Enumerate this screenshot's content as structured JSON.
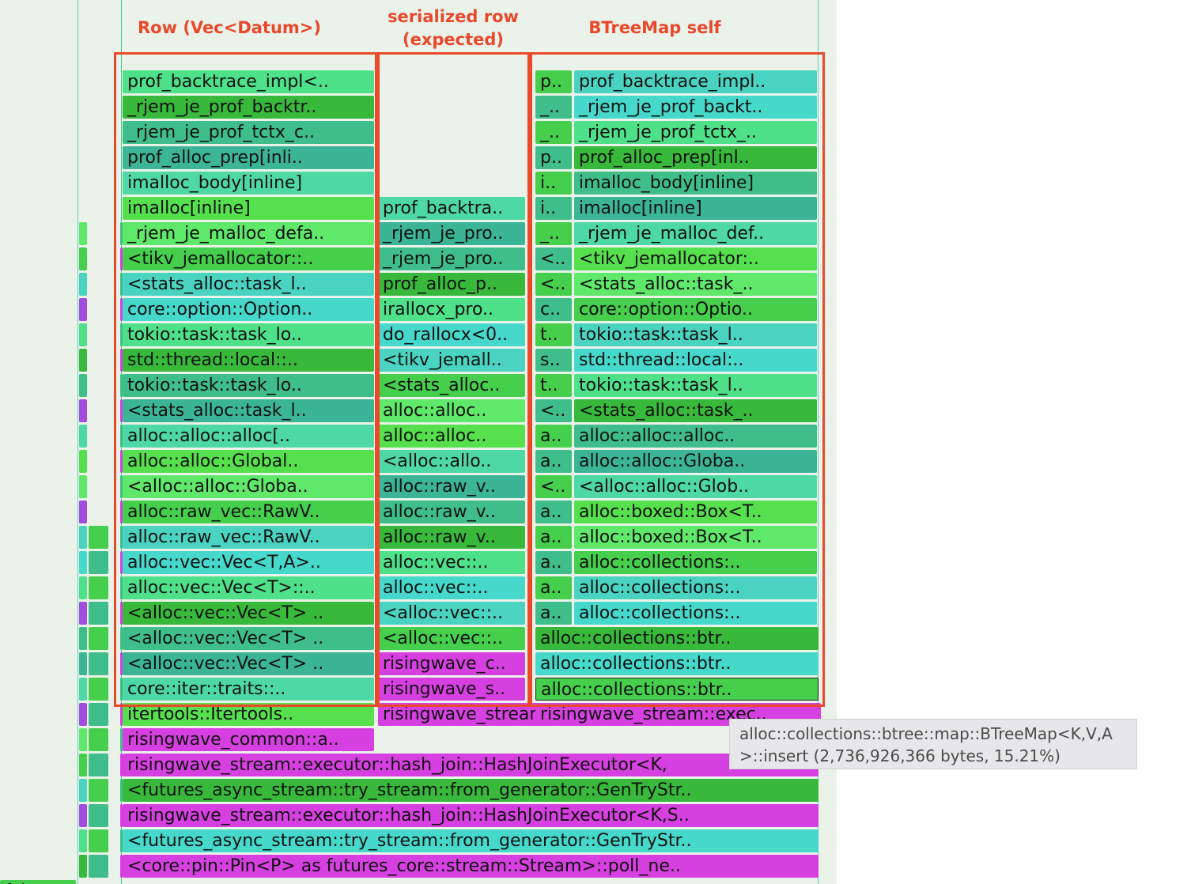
{
  "annotations": {
    "row_label": "Row (Vec<Datum>)",
    "serialized_label": "serialized row\n(expected)",
    "btree_label": "BTreeMap self"
  },
  "colors": {
    "annotation": "#ea4a2a",
    "panel_bg": "#eaf2ea",
    "magenta": "#d63fe0",
    "tooltip_bg": "#e7e7e9"
  },
  "tooltip": {
    "line1": "alloc::collections::btree::map::BTreeMap<K,V,A",
    "line2": ">::insert (2,736,926,366 bytes, 15.21%)"
  },
  "flamegraph": {
    "row_column": [
      "prof_backtrace_impl<..",
      "_rjem_je_prof_backtr..",
      "_rjem_je_prof_tctx_c..",
      "prof_alloc_prep[inli..",
      "imalloc_body[inline]",
      "imalloc[inline]",
      "_rjem_je_malloc_defa..",
      "<tikv_jemallocator::..",
      "<stats_alloc::task_l..",
      "core::option::Option..",
      "tokio::task::task_lo..",
      "std::thread::local::..",
      "tokio::task::task_lo..",
      "<stats_alloc::task_l..",
      "alloc::alloc::alloc[..",
      "alloc::alloc::Global..",
      "<alloc::alloc::Globa..",
      "alloc::raw_vec::RawV..",
      "alloc::raw_vec::RawV..",
      "alloc::vec::Vec<T,A>..",
      "alloc::vec::Vec<T>::..",
      "<alloc::vec::Vec<T> ..",
      "<alloc::vec::Vec<T> ..",
      "<alloc::vec::Vec<T> ..",
      "core::iter::traits::..",
      "itertools::Itertools..",
      "risingwave_common::a.."
    ],
    "serialized_column": [
      "prof_backtra..",
      "_rjem_je_pro..",
      "_rjem_je_pro..",
      "prof_alloc_p..",
      "irallocx_pro..",
      "do_rallocx<0..",
      "<tikv_jemall..",
      "<stats_alloc..",
      "alloc::alloc..",
      "alloc::alloc..",
      "<alloc::allo..",
      "alloc::raw_v..",
      "alloc::raw_v..",
      "alloc::raw_v..",
      "alloc::vec::..",
      "alloc::vec::..",
      "<alloc::vec::..",
      "<alloc::vec::..",
      "risingwave_c..",
      "risingwave_s..",
      "risingwave_stream::executor::mana"
    ],
    "btree_narrow": [
      "p..",
      "_..",
      "_..",
      "p..",
      "i..",
      "i..",
      "_..",
      "<..",
      "<..",
      "c..",
      "t..",
      "s..",
      "t..",
      "<..",
      "a..",
      "a..",
      "<..",
      "a..",
      "a..",
      "a..",
      "a..",
      "a.."
    ],
    "btree_wide": [
      "prof_backtrace_impl..",
      "_rjem_je_prof_backt..",
      "_rjem_je_prof_tctx_..",
      "prof_alloc_prep[inl..",
      "imalloc_body[inline]",
      "imalloc[inline]",
      "_rjem_je_malloc_def..",
      "<tikv_jemallocator:..",
      "<stats_alloc::task_..",
      "core::option::Optio..",
      "tokio::task::task_l..",
      "std::thread::local:..",
      "tokio::task::task_l..",
      "<stats_alloc::task_..",
      "alloc::alloc::alloc..",
      "alloc::alloc::Globa..",
      "<alloc::alloc::Glob..",
      "alloc::boxed::Box<T..",
      "alloc::boxed::Box<T..",
      "alloc::collections:..",
      "alloc::collections:..",
      "alloc::collections:.."
    ],
    "btree_full": [
      "alloc::collections::btr..",
      "alloc::collections::btr..",
      "alloc::collections::btr..",
      "risingwave_stream::exec.."
    ],
    "bottom_frames": [
      "risingwave_stream::executor::hash_join::HashJoinExecutor<K,",
      "<futures_async_stream::try_stream::from_generator::GenTryStr..",
      "risingwave_stream::executor::hash_join::HashJoinExecutor<K,S..",
      "<futures_async_stream::try_stream::from_generator::GenTryStr..",
      "<core::pin::Pin<P> as futures_core::stream::Stream>::poll_ne.."
    ],
    "edge_fragment": "f..l.."
  }
}
